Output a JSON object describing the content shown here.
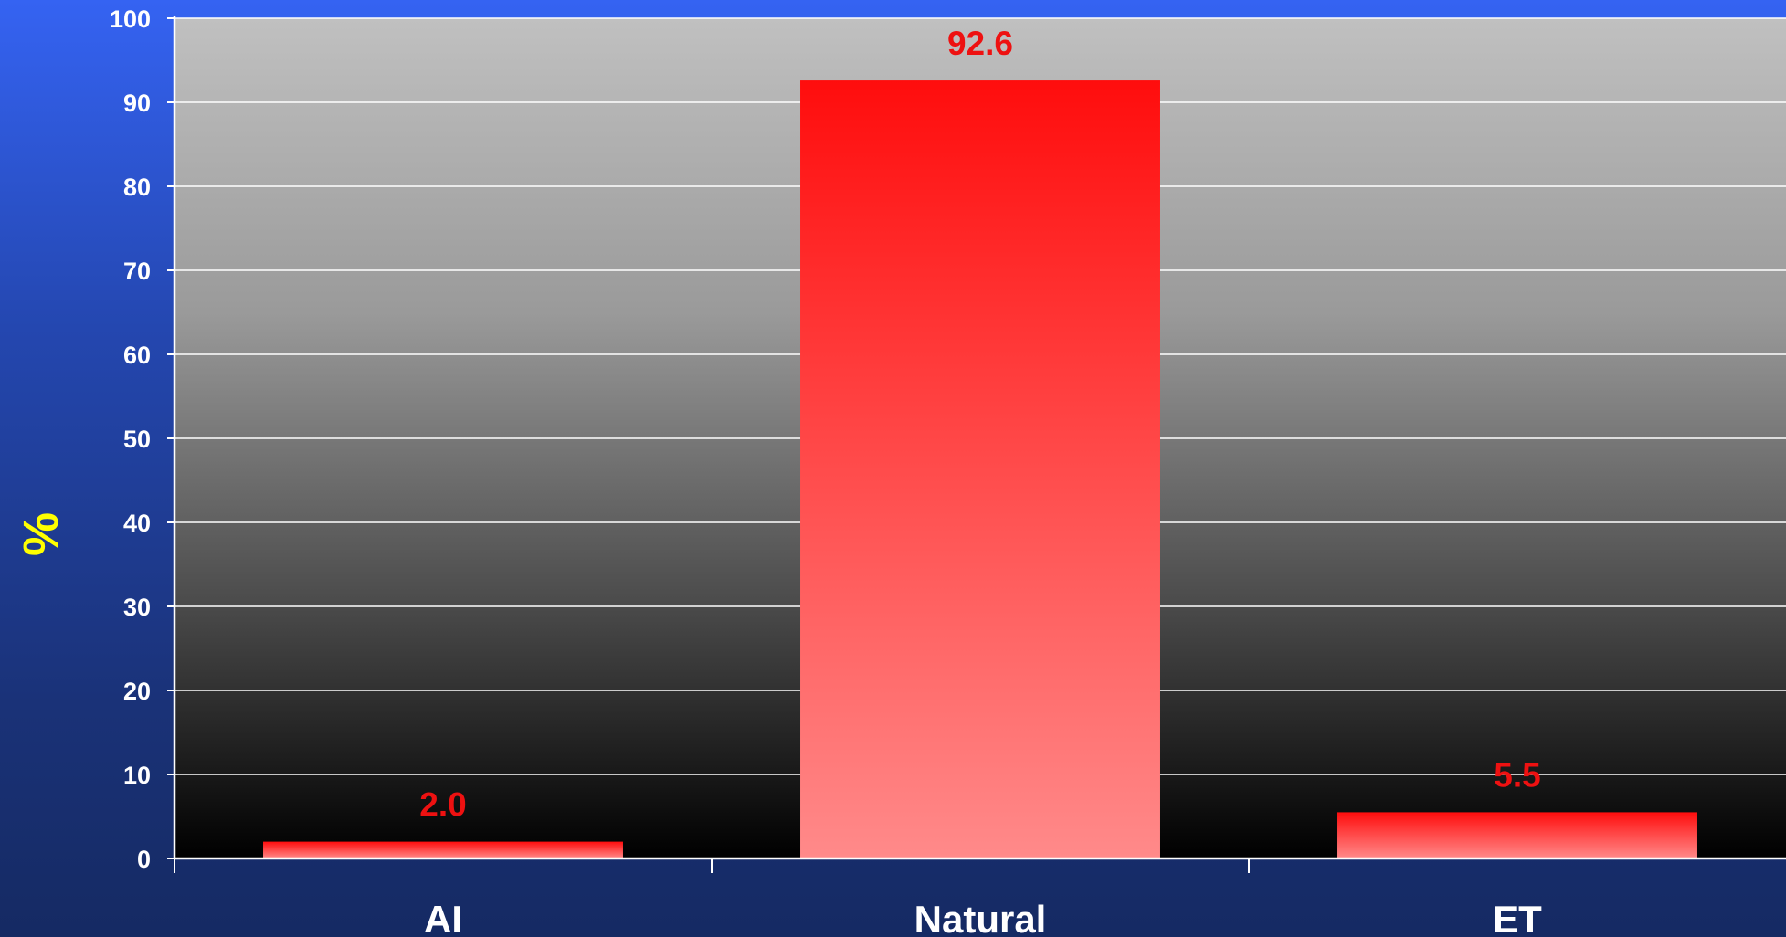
{
  "chart_data": {
    "type": "bar",
    "categories": [
      "AI",
      "Natural",
      "ET"
    ],
    "values": [
      2.0,
      92.6,
      5.5
    ],
    "data_labels": [
      "2.0",
      "92.6",
      "5.5"
    ],
    "title": "",
    "xlabel": "",
    "ylabel": "%",
    "ylim": [
      0,
      100
    ],
    "yticks": [
      0,
      10,
      20,
      30,
      40,
      50,
      60,
      70,
      80,
      90,
      100
    ],
    "grid": true,
    "legend": "none",
    "colors": {
      "bar_top": "#ff0d0d",
      "bar_bottom": "#ff8a8a",
      "data_label": "#ee1111",
      "ylabel": "#ffff00",
      "tick_label": "#ffffff",
      "plot_bg_top": "#c0c0c0",
      "plot_bg_bottom": "#000000",
      "gridline": "#ffffff"
    }
  }
}
